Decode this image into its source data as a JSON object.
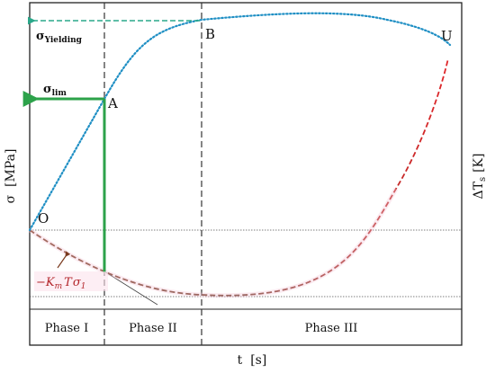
{
  "chart_data": {
    "type": "line",
    "title": "",
    "xlabel": "t  [s]",
    "ylabel_left": "σ  [MPa]",
    "ylabel_right": "ΔT",
    "ylabel_right_sub": "s",
    "ylabel_right_unit": "[K]",
    "phases": [
      "Phase I",
      "Phase II",
      "Phase III"
    ],
    "points": [
      {
        "label": "O"
      },
      {
        "label": "A"
      },
      {
        "label": "B"
      },
      {
        "label": "U"
      }
    ],
    "yield_label": {
      "main": "σ",
      "sub": "Yielding"
    },
    "lim_label": {
      "main": "σ",
      "sub": "lim"
    },
    "thermal_annotation": {
      "prefix": "−",
      "k": "K",
      "k_sub": "m",
      "t": "T",
      "sigma": "σ",
      "sigma_sub": "1"
    },
    "series": [
      {
        "color": "#1f8fc4",
        "style": "dotted"
      },
      {
        "color": "#c4201f",
        "style": "dashed"
      },
      {
        "color": "#2ca24a",
        "style": "solid"
      }
    ],
    "grid": false
  }
}
